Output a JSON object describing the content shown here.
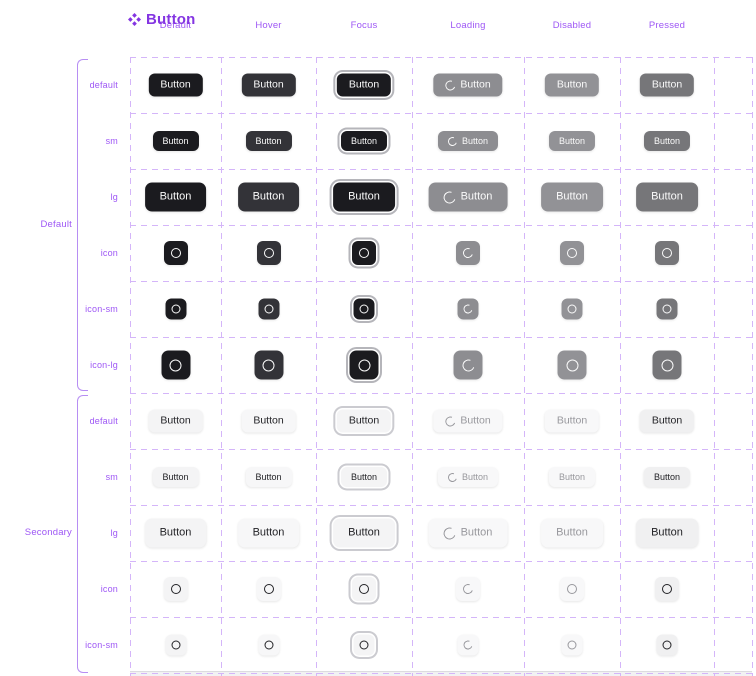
{
  "title": {
    "text": "Button",
    "icon": "component-set-icon"
  },
  "columns": [
    {
      "label": "Default"
    },
    {
      "label": "Hover"
    },
    {
      "label": "Focus"
    },
    {
      "label": "Loading"
    },
    {
      "label": "Disabled"
    },
    {
      "label": "Pressed"
    }
  ],
  "states": [
    "default",
    "hover",
    "focus",
    "loading",
    "disabled",
    "pressed"
  ],
  "button_label": "Button",
  "groups": [
    {
      "label": "Default",
      "variant": "primary",
      "rows": [
        {
          "label": "default",
          "kind": "text",
          "size": "md"
        },
        {
          "label": "sm",
          "kind": "text",
          "size": "sm"
        },
        {
          "label": "lg",
          "kind": "text",
          "size": "lg"
        },
        {
          "label": "icon",
          "kind": "icon",
          "size": "md"
        },
        {
          "label": "icon-sm",
          "kind": "icon",
          "size": "sm"
        },
        {
          "label": "icon-lg",
          "kind": "icon",
          "size": "lg"
        }
      ]
    },
    {
      "label": "Secondary",
      "variant": "secondary",
      "rows": [
        {
          "label": "default",
          "kind": "text",
          "size": "md"
        },
        {
          "label": "sm",
          "kind": "text",
          "size": "sm"
        },
        {
          "label": "lg",
          "kind": "text",
          "size": "lg"
        },
        {
          "label": "icon",
          "kind": "icon",
          "size": "md"
        },
        {
          "label": "icon-sm",
          "kind": "icon",
          "size": "sm"
        }
      ]
    }
  ],
  "colors": {
    "accent": "#9e57f5",
    "title": "#8435e2",
    "dash": "#d4b5f9",
    "bracket": "#b78ef3",
    "primary_bg": "#1b1b1f",
    "primary_hover_bg": "#333338",
    "primary_fg": "#fafafa",
    "primary_loading_bg": "#8d8d91",
    "primary_disabled_bg": "#929296",
    "primary_pressed_bg": "#767679",
    "primary_ring": "#b5b5ba",
    "secondary_bg": "#f4f4f5",
    "secondary_hover_bg": "#f7f7f8",
    "secondary_fg": "#232327",
    "secondary_muted_bg": "#f8f8f9",
    "secondary_muted_fg": "#98989d",
    "secondary_pressed_bg": "#f0f0f1",
    "secondary_ring": "#cbcbd0",
    "ring_offset": "#ffffff"
  }
}
